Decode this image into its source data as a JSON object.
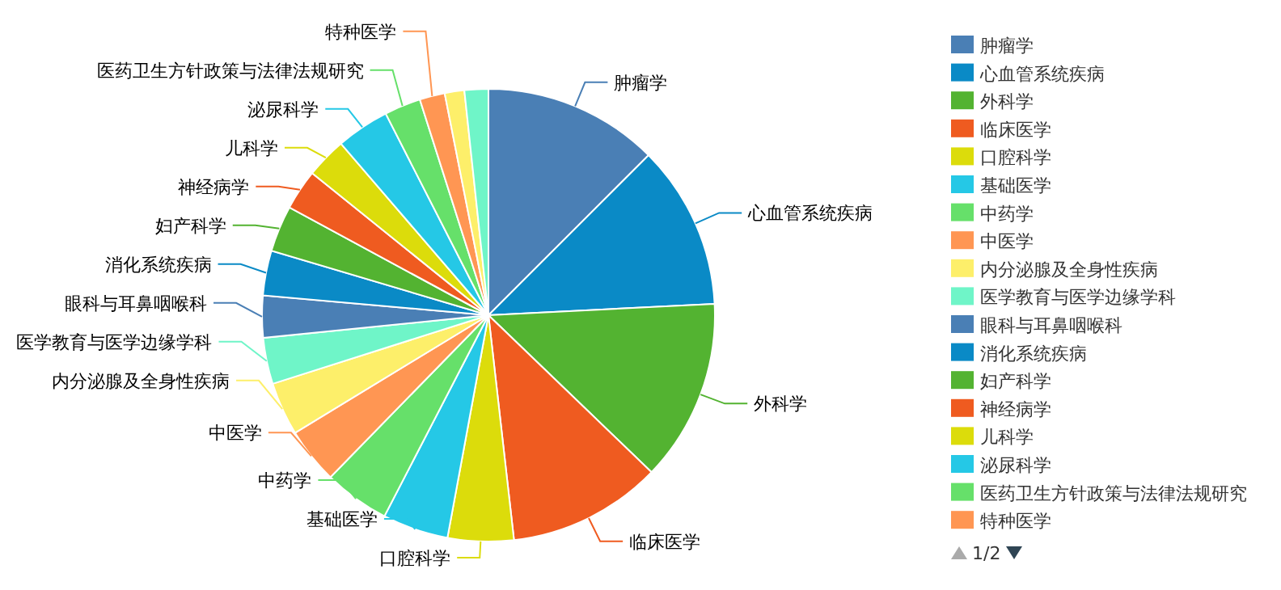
{
  "chart_data": {
    "type": "pie",
    "legend": "right",
    "categories": [
      "肿瘤学",
      "心血管系统疾病",
      "外科学",
      "临床医学",
      "口腔科学",
      "基础医学",
      "中药学",
      "中医学",
      "内分泌腺及全身性疾病",
      "医学教育与医学边缘学科",
      "眼科与耳鼻咽喉科",
      "消化系统疾病",
      "妇产科学",
      "神经病学",
      "儿科学",
      "泌尿科学",
      "医药卫生方针政策与法律法规研究",
      "特种医学",
      null,
      null
    ],
    "values": [
      12.5,
      11.7,
      13,
      11,
      4.7,
      4.7,
      4.7,
      4,
      3.8,
      3.3,
      3,
      3.2,
      3.3,
      2.9,
      2.9,
      3.8,
      2.6,
      1.8,
      1.4,
      1.7
    ],
    "colors": [
      "#4a7fb5",
      "#0a8ac6",
      "#53b331",
      "#ef5b20",
      "#dcdc0b",
      "#25c8e6",
      "#66e06a",
      "#ff9653",
      "#fdef6a",
      "#6ff5c8",
      "#4a7fb5",
      "#0a8ac6",
      "#53b331",
      "#ef5b20",
      "#dcdc0b",
      "#25c8e6",
      "#66e06a",
      "#ff9653",
      "#fdef6a",
      "#6ff5c8"
    ],
    "annotations": [
      "1/2"
    ]
  }
}
